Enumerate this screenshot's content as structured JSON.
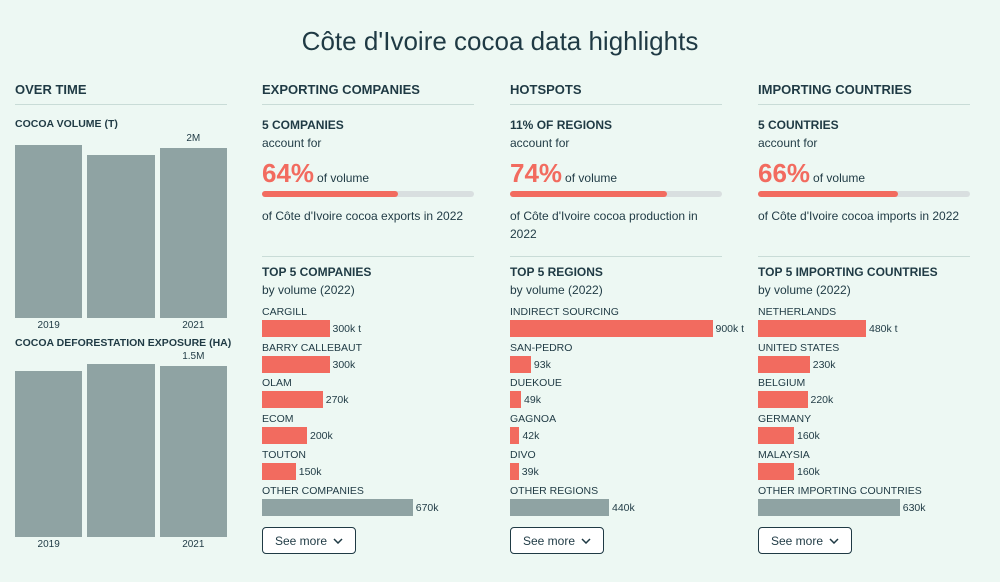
{
  "title": "Côte d'Ivoire cocoa data highlights",
  "over_time": {
    "heading": "OVER TIME",
    "charts": [
      {
        "title": "COCOA VOLUME (T)",
        "categories": [
          "2019",
          null,
          "2021"
        ],
        "values": [
          2040000,
          1920000,
          2000000
        ],
        "value_labels": [
          null,
          null,
          "2M"
        ],
        "color": "#8fa3a3"
      },
      {
        "title": "COCOA DEFORESTATION EXPOSURE (HA)",
        "categories": [
          "2019",
          null,
          "2021"
        ],
        "values": [
          1460000,
          1520000,
          1500000
        ],
        "value_labels": [
          null,
          null,
          "1.5M"
        ],
        "color": "#8fa3a3"
      }
    ]
  },
  "panels": [
    {
      "heading": "EXPORTING COMPANIES",
      "stat_title": "5 COMPANIES",
      "stat_lead": "account for",
      "share": 64,
      "share_label": "64%",
      "share_suffix": "of volume",
      "stat_text": "of Côte d'Ivoire cocoa exports in 2022",
      "top_title": "TOP 5 COMPANIES",
      "top_subtitle": "by volume (2022)",
      "items": [
        {
          "name": "CARGILL",
          "value": 300000,
          "label": "300k t",
          "color": "#f26b5f"
        },
        {
          "name": "BARRY CALLEBAUT",
          "value": 300000,
          "label": "300k",
          "color": "#f26b5f"
        },
        {
          "name": "OLAM",
          "value": 270000,
          "label": "270k",
          "color": "#f26b5f"
        },
        {
          "name": "ECOM",
          "value": 200000,
          "label": "200k",
          "color": "#f26b5f"
        },
        {
          "name": "TOUTON",
          "value": 150000,
          "label": "150k",
          "color": "#f26b5f"
        },
        {
          "name": "OTHER COMPANIES",
          "value": 670000,
          "label": "670k",
          "color": "#8fa3a3"
        }
      ],
      "button": "See more"
    },
    {
      "heading": "HOTSPOTS",
      "stat_title": "11% OF REGIONS",
      "stat_lead": "account for",
      "share": 74,
      "share_label": "74%",
      "share_suffix": "of volume",
      "stat_text": "of Côte d'Ivoire cocoa production in 2022",
      "top_title": "TOP 5 REGIONS",
      "top_subtitle": "by volume (2022)",
      "items": [
        {
          "name": "INDIRECT SOURCING",
          "value": 900000,
          "label": "900k t",
          "color": "#f26b5f"
        },
        {
          "name": "SAN-PEDRO",
          "value": 93000,
          "label": "93k",
          "color": "#f26b5f"
        },
        {
          "name": "DUEKOUE",
          "value": 49000,
          "label": "49k",
          "color": "#f26b5f"
        },
        {
          "name": "GAGNOA",
          "value": 42000,
          "label": "42k",
          "color": "#f26b5f"
        },
        {
          "name": "DIVO",
          "value": 39000,
          "label": "39k",
          "color": "#f26b5f"
        },
        {
          "name": "OTHER REGIONS",
          "value": 440000,
          "label": "440k",
          "color": "#8fa3a3"
        }
      ],
      "button": "See more"
    },
    {
      "heading": "IMPORTING COUNTRIES",
      "stat_title": "5 COUNTRIES",
      "stat_lead": "account for",
      "share": 66,
      "share_label": "66%",
      "share_suffix": "of volume",
      "stat_text": "of Côte d'Ivoire cocoa imports in 2022",
      "top_title": "TOP 5 IMPORTING COUNTRIES",
      "top_subtitle": "by volume (2022)",
      "items": [
        {
          "name": "NETHERLANDS",
          "value": 480000,
          "label": "480k t",
          "color": "#f26b5f"
        },
        {
          "name": "UNITED STATES",
          "value": 230000,
          "label": "230k",
          "color": "#f26b5f"
        },
        {
          "name": "BELGIUM",
          "value": 220000,
          "label": "220k",
          "color": "#f26b5f"
        },
        {
          "name": "GERMANY",
          "value": 160000,
          "label": "160k",
          "color": "#f26b5f"
        },
        {
          "name": "MALAYSIA",
          "value": 160000,
          "label": "160k",
          "color": "#f26b5f"
        },
        {
          "name": "OTHER IMPORTING COUNTRIES",
          "value": 630000,
          "label": "630k",
          "color": "#8fa3a3"
        }
      ],
      "button": "See more"
    }
  ]
}
